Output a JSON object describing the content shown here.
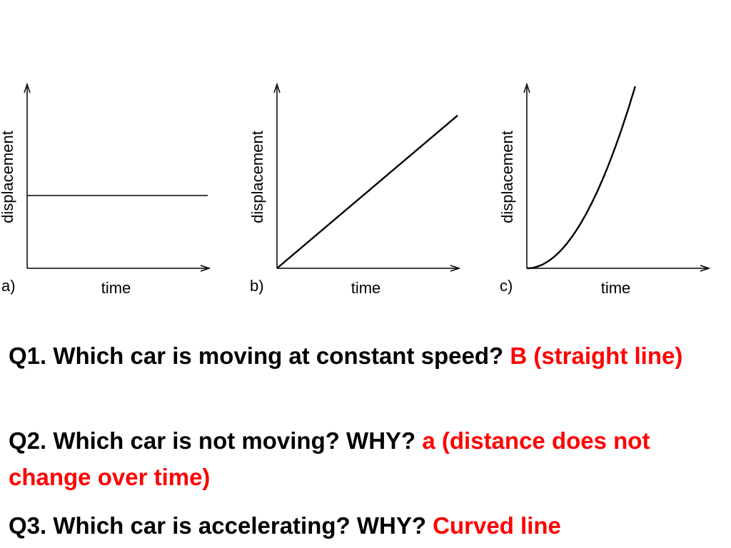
{
  "chart_data": [
    {
      "type": "line",
      "panel_label": "a)",
      "xlabel": "time",
      "ylabel": "displacement",
      "curve": "constant",
      "x": [
        0,
        10
      ],
      "y": [
        4,
        4
      ],
      "xlim": [
        0,
        10
      ],
      "ylim": [
        0,
        10
      ],
      "grid": false
    },
    {
      "type": "line",
      "panel_label": "b)",
      "xlabel": "time",
      "ylabel": "displacement",
      "curve": "linear",
      "x": [
        0,
        10
      ],
      "y": [
        0,
        8.4
      ],
      "xlim": [
        0,
        10
      ],
      "ylim": [
        0,
        10
      ],
      "grid": false
    },
    {
      "type": "line",
      "panel_label": "c)",
      "xlabel": "time",
      "ylabel": "displacement",
      "curve": "quadratic",
      "x": [
        0,
        1,
        2,
        3,
        4,
        5,
        6
      ],
      "y": [
        0,
        0.28,
        1.11,
        2.5,
        4.44,
        6.94,
        10
      ],
      "xlim": [
        0,
        10
      ],
      "ylim": [
        0,
        10
      ],
      "grid": false
    }
  ],
  "questions": [
    {
      "text": "Q1. Which car is moving at constant speed? ",
      "answer": "B (straight line)"
    },
    {
      "text": "Q2. Which car is not moving? WHY? ",
      "answer": "a (distance does not change over time)"
    },
    {
      "text": "Q3. Which car is accelerating? WHY? ",
      "answer": "Curved line"
    }
  ],
  "colors": {
    "answer": "#ff0000",
    "text": "#000000",
    "axes": "#000000"
  }
}
